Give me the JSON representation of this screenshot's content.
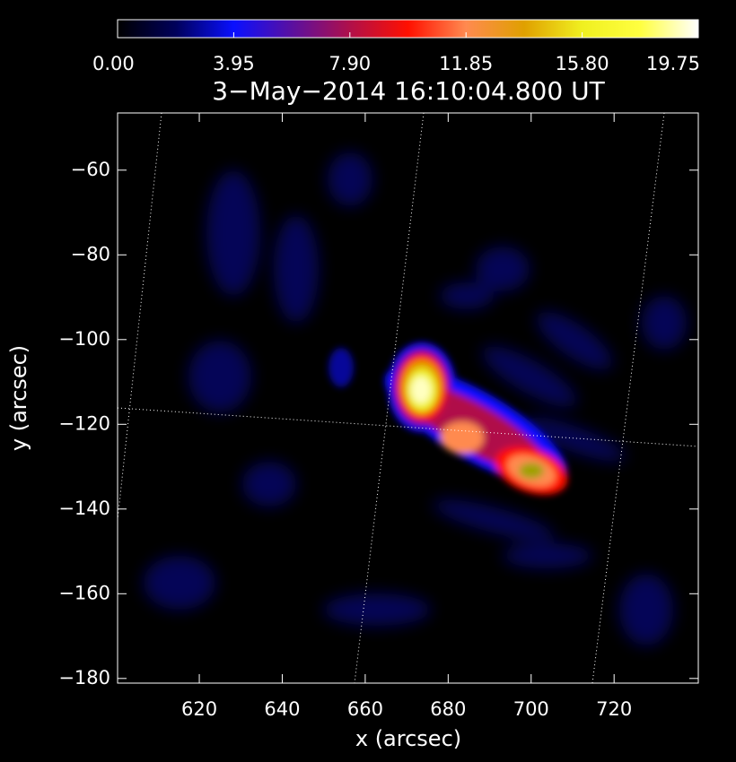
{
  "chart_data": {
    "type": "image",
    "title": "3−May−2014 16:10:04.800 UT",
    "xlabel": "x (arcsec)",
    "ylabel": "y (arcsec)",
    "xlim": [
      600.3,
      740.3
    ],
    "ylim": [
      -181.1,
      -46.5
    ],
    "xticks": [
      620,
      640,
      660,
      680,
      700,
      720
    ],
    "yticks": [
      {
        "value": -60,
        "label": "−60"
      },
      {
        "value": -80,
        "label": "−80"
      },
      {
        "value": -100,
        "label": "−100"
      },
      {
        "value": -120,
        "label": "−120"
      },
      {
        "value": -140,
        "label": "−140"
      },
      {
        "value": -160,
        "label": "−160"
      },
      {
        "value": -180,
        "label": "−180"
      }
    ],
    "colorbar": {
      "lim": [
        0,
        19.75
      ],
      "ticks": [
        {
          "value": 0,
          "label": "0.00"
        },
        3.95,
        {
          "value": 7.9,
          "label": "7.90"
        },
        11.85,
        {
          "value": 15.8,
          "label": "15.80"
        },
        19.75
      ],
      "colormap": [
        "#000000",
        "#00005a",
        "#0a10ff",
        "#5a10a0",
        "#b0104a",
        "#ff1000",
        "#ff8a50",
        "#e0a000",
        "#f0f020",
        "#ffff40",
        "#ffffff"
      ]
    }
  }
}
